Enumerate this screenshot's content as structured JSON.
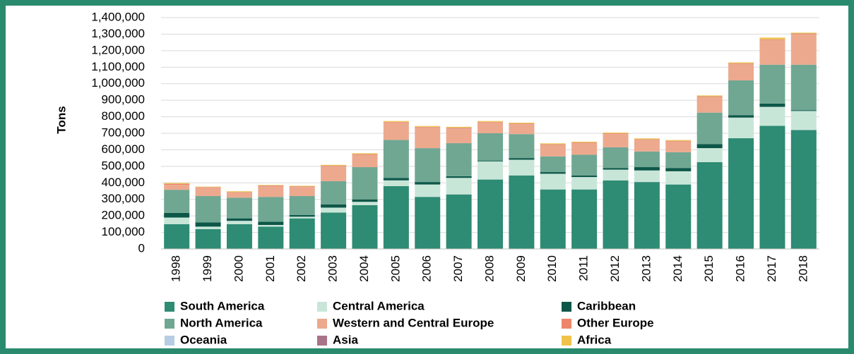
{
  "chart_data": {
    "type": "stacked_bar",
    "ylabel": "Tons",
    "categories": [
      "1998",
      "1999",
      "2000",
      "2001",
      "2002",
      "2003",
      "2004",
      "2005",
      "2006",
      "2007",
      "2008",
      "2009",
      "2010",
      "2011",
      "2012",
      "2013",
      "2014",
      "2015",
      "2016",
      "2017",
      "2018"
    ],
    "series": [
      {
        "name": "South America",
        "color": "#2e8b74",
        "values": [
          150000,
          120000,
          150000,
          135000,
          185000,
          220000,
          265000,
          380000,
          315000,
          330000,
          420000,
          445000,
          360000,
          360000,
          415000,
          405000,
          390000,
          525000,
          670000,
          745000,
          720000
        ]
      },
      {
        "name": "Central America",
        "color": "#c8e6d8",
        "values": [
          40000,
          15000,
          20000,
          10000,
          10000,
          30000,
          20000,
          35000,
          75000,
          100000,
          110000,
          95000,
          95000,
          75000,
          65000,
          70000,
          80000,
          85000,
          125000,
          115000,
          115000
        ]
      },
      {
        "name": "Caribbean",
        "color": "#0d5748",
        "values": [
          28000,
          25000,
          15000,
          20000,
          10000,
          20000,
          15000,
          15000,
          15000,
          10000,
          5000,
          10000,
          10000,
          10000,
          10000,
          20000,
          20000,
          25000,
          15000,
          20000,
          5000
        ]
      },
      {
        "name": "North America",
        "color": "#6fa793",
        "values": [
          140000,
          160000,
          125000,
          150000,
          115000,
          140000,
          195000,
          230000,
          205000,
          200000,
          165000,
          145000,
          95000,
          125000,
          125000,
          95000,
          95000,
          190000,
          210000,
          235000,
          275000
        ]
      },
      {
        "name": "Western and Central Europe",
        "color": "#eca98e",
        "values": [
          30000,
          50000,
          30000,
          65000,
          55000,
          90000,
          75000,
          105000,
          125000,
          90000,
          65000,
          60000,
          70000,
          70000,
          80000,
          70000,
          65000,
          95000,
          100000,
          150000,
          185000
        ]
      },
      {
        "name": "Other Europe",
        "color": "#ee8569",
        "values": [
          5000,
          3000,
          3000,
          3000,
          3000,
          3000,
          3000,
          3000,
          3000,
          3000,
          3000,
          3000,
          3000,
          3000,
          3000,
          3000,
          3000,
          3000,
          3000,
          3000,
          3000
        ]
      },
      {
        "name": "Oceania",
        "color": "#b6cde3",
        "values": [
          0,
          0,
          0,
          0,
          0,
          0,
          0,
          0,
          0,
          0,
          0,
          0,
          0,
          0,
          0,
          0,
          0,
          0,
          0,
          0,
          0
        ]
      },
      {
        "name": "Asia",
        "color": "#a87488",
        "values": [
          1000,
          1000,
          1000,
          1000,
          1000,
          1000,
          1000,
          1000,
          1000,
          1000,
          1000,
          1000,
          1000,
          1000,
          1000,
          1000,
          1000,
          1000,
          1000,
          1000,
          1000
        ]
      },
      {
        "name": "Africa",
        "color": "#f0c24a",
        "values": [
          5000,
          3000,
          5000,
          3000,
          3000,
          5000,
          5000,
          5000,
          5000,
          5000,
          5000,
          5000,
          5000,
          5000,
          5000,
          5000,
          5000,
          5000,
          5000,
          10000,
          5000
        ]
      }
    ],
    "ylim": [
      0,
      1400000
    ],
    "yticks": [
      0,
      {
        "value": 100000,
        "label": "100,000"
      },
      {
        "value": 200000,
        "label": "200,000"
      },
      {
        "value": 300000,
        "label": "300,000"
      },
      {
        "value": 400000,
        "label": "400,000"
      },
      {
        "value": 500000,
        "label": "500,000"
      },
      {
        "value": 600000,
        "label": "600,000"
      },
      {
        "value": 700000,
        "label": "700,000"
      },
      {
        "value": 800000,
        "label": "800,000"
      },
      {
        "value": 900000,
        "label": "900,000"
      },
      {
        "value": 1000000,
        "label": "1,000,000"
      },
      {
        "value": 1100000,
        "label": "1,100,000"
      },
      {
        "value": 1200000,
        "label": "1,200,000"
      },
      {
        "value": 1300000,
        "label": "1,300,000"
      },
      {
        "value": 1400000,
        "label": "1,400,000"
      }
    ],
    "grid": true,
    "legend": "bottom"
  }
}
